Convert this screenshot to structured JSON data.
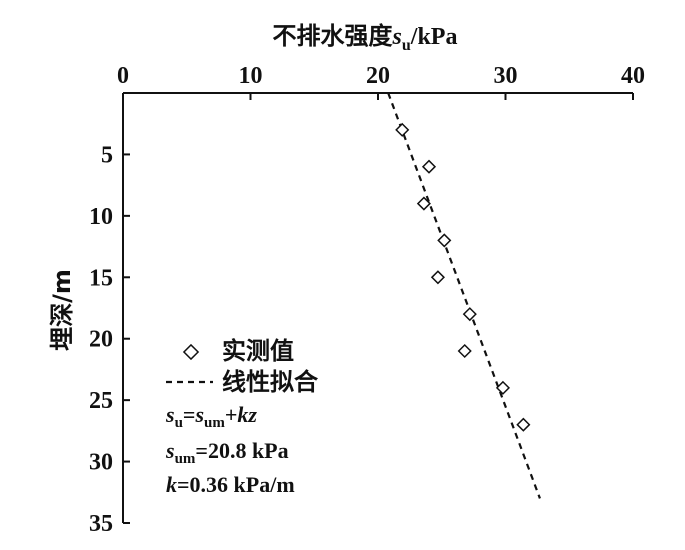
{
  "chart_data": {
    "type": "scatter",
    "x_axis_title_prefix": "不排水强度",
    "x_axis_title_var": "s",
    "x_axis_title_sub": "u",
    "x_axis_title_suffix": "/kPa",
    "ylabel": "埋深/m",
    "xlim": [
      0,
      40
    ],
    "ylim": [
      0,
      35
    ],
    "y_inverted": true,
    "x_axis_position": "top",
    "x_ticks": [
      0,
      10,
      20,
      30,
      40
    ],
    "y_ticks": [
      5,
      10,
      15,
      20,
      25,
      30,
      35
    ],
    "series": [
      {
        "name": "实测值",
        "marker": "diamond",
        "x": [
          21.9,
          24.0,
          23.6,
          25.2,
          24.7,
          27.2,
          26.8,
          29.8,
          31.4
        ],
        "y": [
          3.0,
          6.0,
          9.0,
          12.0,
          15.0,
          18.0,
          21.0,
          24.0,
          27.0
        ]
      },
      {
        "name": "线性拟合",
        "style": "dashed",
        "x": [
          20.8,
          32.7
        ],
        "y": [
          0.0,
          33.0
        ]
      }
    ],
    "legend_position": "bottom-left",
    "annotations": [
      {
        "id": "eq1",
        "parts": [
          "s",
          "u",
          "=",
          "s",
          "um",
          "+",
          "kz"
        ]
      },
      {
        "id": "eq2",
        "parts": [
          "s",
          "um",
          "=20.8 kPa"
        ]
      },
      {
        "id": "eq3",
        "parts": [
          "k",
          "=0.36 kPa/m"
        ]
      }
    ]
  }
}
